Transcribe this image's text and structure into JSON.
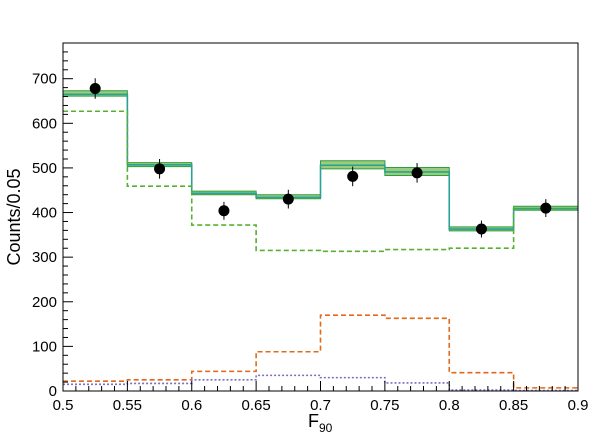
{
  "chart_data": {
    "type": "histogram",
    "xlabel": {
      "main": "F",
      "sub": "90"
    },
    "ylabel": "Counts/0.05",
    "xlim": [
      0.5,
      0.9
    ],
    "ylim": [
      0,
      780
    ],
    "x_ticks": [
      0.5,
      0.55,
      0.6,
      0.65,
      0.7,
      0.75,
      0.8,
      0.85,
      0.9
    ],
    "x_tick_labels": [
      "0.5",
      "0.55",
      "0.6",
      "0.65",
      "0.7",
      "0.75",
      "0.8",
      "0.85",
      "0.9"
    ],
    "y_ticks": [
      0,
      100,
      200,
      300,
      400,
      500,
      600,
      700
    ],
    "y_tick_labels": [
      "0",
      "100",
      "200",
      "300",
      "400",
      "500",
      "600",
      "700"
    ],
    "bin_edges": [
      0.5,
      0.55,
      0.6,
      0.65,
      0.7,
      0.75,
      0.8,
      0.85,
      0.9
    ],
    "data_points": {
      "x": [
        0.525,
        0.575,
        0.625,
        0.675,
        0.725,
        0.775,
        0.825,
        0.875
      ],
      "y": [
        678,
        498,
        404,
        430,
        481,
        489,
        363,
        410
      ],
      "err": [
        23,
        22,
        20,
        21,
        22,
        22,
        19,
        20
      ],
      "color": "#000000"
    },
    "series": [
      {
        "style": "band",
        "color": "#9ccc7a",
        "stroke": "#2e9d3c",
        "lower": [
          661,
          503,
          440,
          431,
          498,
          483,
          359,
          405
        ],
        "upper": [
          673,
          512,
          448,
          440,
          516,
          501,
          368,
          414
        ]
      },
      {
        "style": "solid",
        "color": "#2aa198",
        "values": [
          665,
          507,
          443,
          434,
          506,
          491,
          363,
          409
        ]
      },
      {
        "style": "dashed",
        "color": "#58b030",
        "values": [
          627,
          459,
          372,
          315,
          313,
          317,
          320,
          407
        ]
      },
      {
        "style": "dashed",
        "color": "#e06a1a",
        "values": [
          22,
          25,
          44,
          88,
          170,
          163,
          41,
          7
        ]
      },
      {
        "style": "dotted",
        "color": "#7b6fc0",
        "values": [
          15,
          17,
          25,
          35,
          30,
          18,
          2,
          1
        ]
      }
    ]
  }
}
